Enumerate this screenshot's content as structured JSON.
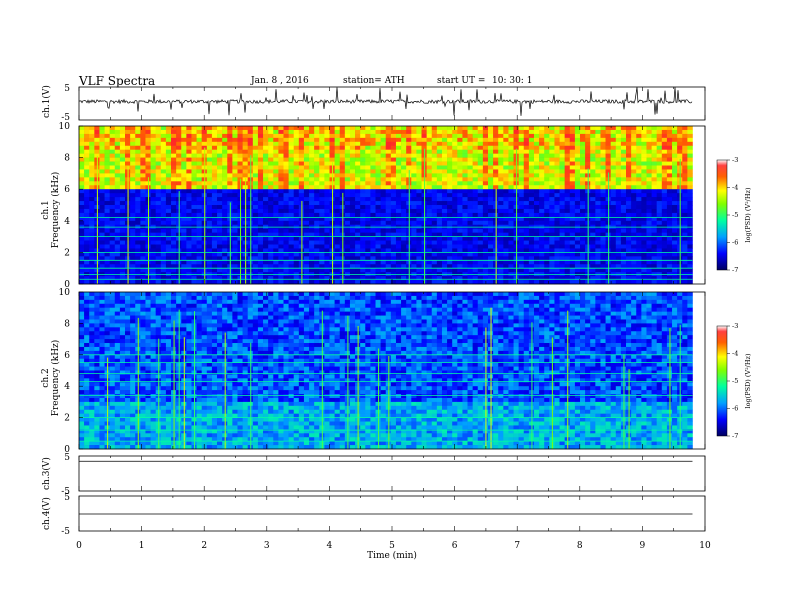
{
  "header": {
    "title": "VLF  Spectra",
    "date": "Jan.  8  , 2016",
    "station": "station= ATH",
    "start_label": "start  UT  =",
    "start_value": "10: 30: 1"
  },
  "colors": {
    "spectrogram_low": "#000033",
    "spectrogram_mid": "#00ff7f",
    "spectrogram_high": "#ff0000",
    "trace": "#000000"
  },
  "chart_data": [
    {
      "type": "line",
      "panel": "ch1-waveform",
      "ylabel": "ch.1(V)",
      "ylim": [
        -5,
        5
      ],
      "yticks": [
        "5",
        "-5"
      ],
      "x_range_min": [
        0,
        9.8
      ],
      "description_values": "noisy waveform around ~0.6 V with impulsive spikes"
    },
    {
      "type": "heatmap",
      "panel": "ch1-spectrogram",
      "ylabel_top": "ch.1",
      "ylabel": "Frequency  (kHz)",
      "ylim": [
        0,
        10
      ],
      "yticks": [
        "0",
        "2",
        "4",
        "6",
        "8",
        "10"
      ],
      "colorbar": {
        "label": "log(PSD) (V²/Hz)",
        "range": [
          -7,
          -3
        ],
        "ticks": [
          "-3",
          "-4",
          "-5",
          "-6",
          "-7"
        ]
      },
      "features": {
        "strong_band_above_khz": 6,
        "horizontal_lines_khz": [
          0.3,
          0.6,
          1.0,
          1.5,
          2.0,
          3.0,
          3.6,
          4.2
        ]
      }
    },
    {
      "type": "heatmap",
      "panel": "ch2-spectrogram",
      "ylabel_top": "ch.2",
      "ylabel": "Frequency  (kHz)",
      "ylim": [
        0,
        10
      ],
      "yticks": [
        "0",
        "2",
        "4",
        "6",
        "8",
        "10"
      ],
      "colorbar": {
        "label": "log(PSD) (V²/Hz)",
        "range": [
          -7,
          -3
        ],
        "ticks": [
          "-3",
          "-4",
          "-5",
          "-6",
          "-7"
        ]
      },
      "features": {
        "horizontal_lines_khz": [
          0.5,
          1.2,
          2.0,
          3.4,
          4.3,
          4.8,
          5.5,
          6.0
        ]
      }
    },
    {
      "type": "line",
      "panel": "ch3-waveform",
      "ylabel": "ch.3(V)",
      "ylim": [
        -5,
        5
      ],
      "yticks": [
        "5",
        "-5"
      ],
      "level_v": 3.5
    },
    {
      "type": "line",
      "panel": "ch4-waveform",
      "ylabel": "ch.4(V)",
      "ylim": [
        -5,
        5
      ],
      "yticks": [
        "5",
        "-5"
      ],
      "level_v": 0
    }
  ],
  "x_axis": {
    "label": "Time  (min)",
    "ticks": [
      "0",
      "1",
      "2",
      "3",
      "4",
      "5",
      "6",
      "7",
      "8",
      "9",
      "10"
    ],
    "range": [
      0,
      10
    ],
    "data_end_min": 9.8
  }
}
